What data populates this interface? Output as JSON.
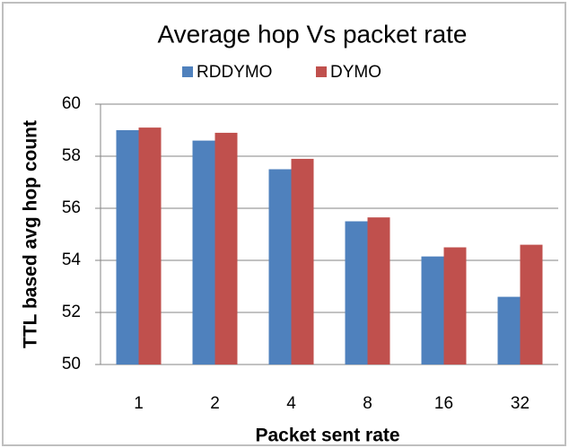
{
  "chart_data": {
    "type": "bar",
    "title": "Average hop Vs packet rate",
    "x_label": "Packet sent rate",
    "y_label": "TTL based avg hop count",
    "categories": [
      "1",
      "2",
      "4",
      "8",
      "16",
      "32"
    ],
    "series": [
      {
        "name": "RDDYMO",
        "color": "#4f81bd",
        "values": [
          59.0,
          58.6,
          57.5,
          55.5,
          54.15,
          52.6
        ]
      },
      {
        "name": "DYMO",
        "color": "#c0504d",
        "values": [
          59.1,
          58.9,
          57.9,
          55.65,
          54.5,
          54.6
        ]
      }
    ],
    "ylim": [
      50,
      60
    ],
    "yticks": [
      50,
      52,
      54,
      56,
      58,
      60
    ],
    "grid": true,
    "legend": "top"
  }
}
